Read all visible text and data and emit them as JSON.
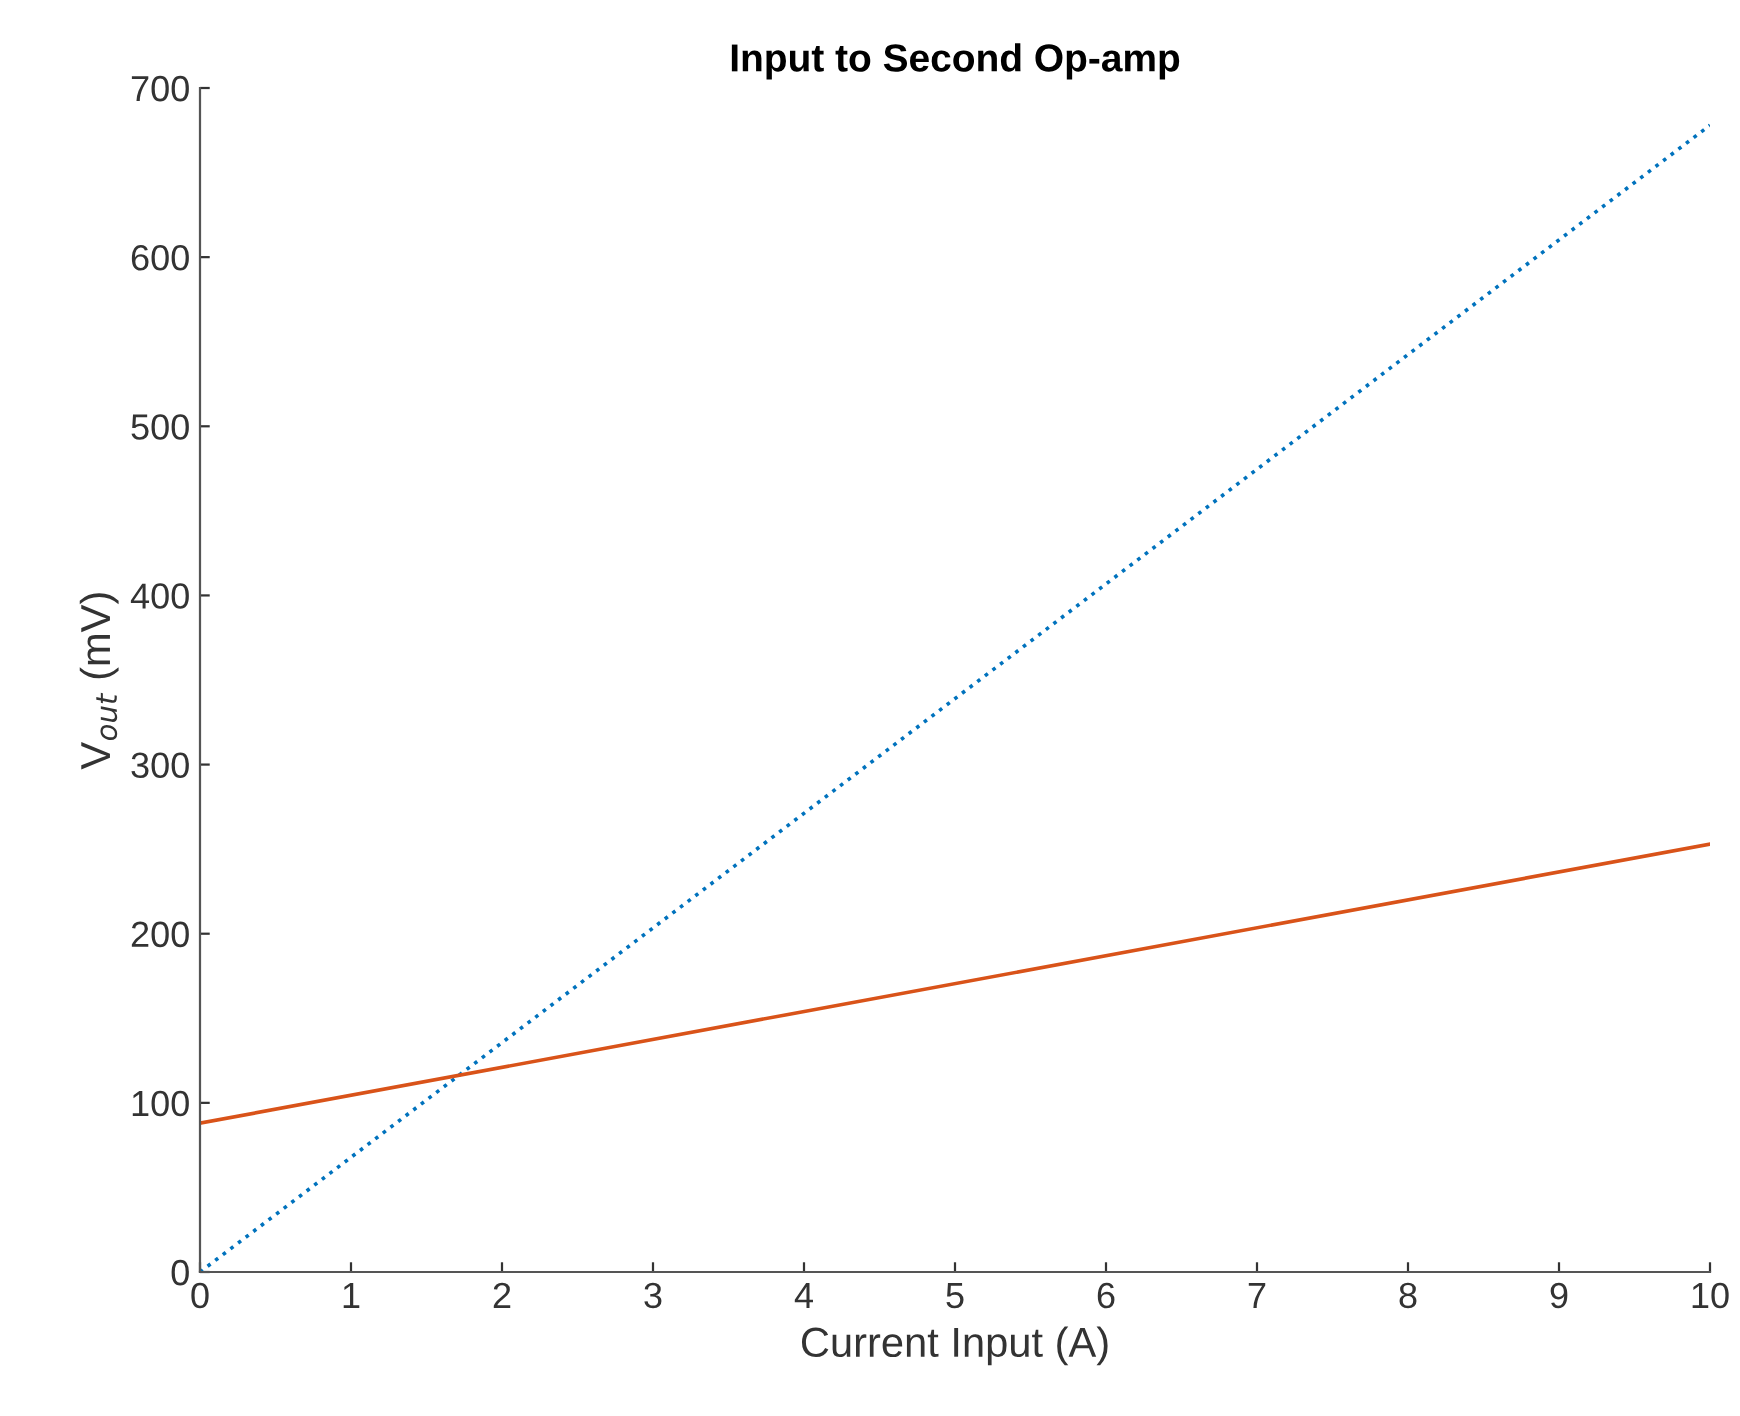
{
  "chart_data": {
    "type": "line",
    "title": "Input to Second Op-amp",
    "xlabel": "Current Input (A)",
    "ylabel": "V$_{out}$ (mV)",
    "x": [
      0,
      10
    ],
    "series": [
      {
        "color": "#0072bd",
        "line_style": "dotted",
        "values": [
          0,
          678
        ]
      },
      {
        "color": "#d95319",
        "line_style": "solid",
        "values": [
          88,
          253
        ]
      }
    ],
    "xlim": [
      0,
      10
    ],
    "xticks": [
      0,
      1,
      2,
      3,
      4,
      5,
      6,
      7,
      8,
      9,
      10
    ],
    "ylim": [
      0,
      700
    ],
    "yticks": [
      0,
      100,
      200,
      300,
      400,
      500,
      600,
      700
    ],
    "grid": false
  }
}
